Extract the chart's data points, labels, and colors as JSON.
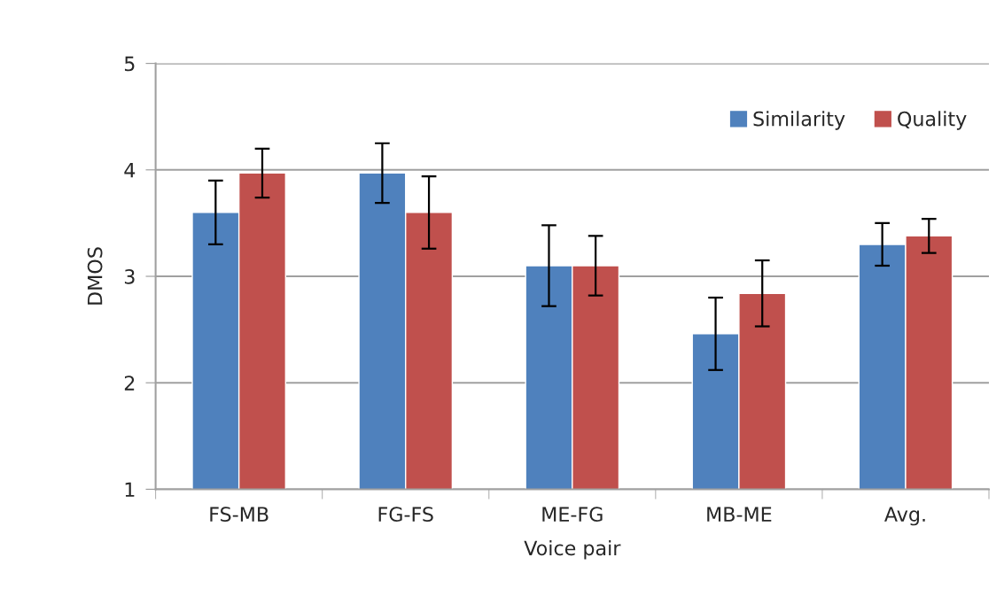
{
  "chart_data": {
    "type": "bar",
    "xlabel": "Voice pair",
    "ylabel": "DMOS",
    "categories": [
      "FS-MB",
      "FG-FS",
      "ME-FG",
      "MB-ME",
      "Avg."
    ],
    "series": [
      {
        "name": "Similarity",
        "color": "#4f81bd",
        "values": [
          3.6,
          3.97,
          3.1,
          2.46,
          3.3
        ],
        "errors": [
          0.3,
          0.28,
          0.38,
          0.34,
          0.2
        ]
      },
      {
        "name": "Quality",
        "color": "#c0504d",
        "values": [
          3.97,
          3.6,
          3.1,
          2.84,
          3.38
        ],
        "errors": [
          0.23,
          0.34,
          0.28,
          0.31,
          0.16
        ]
      }
    ],
    "ylim": [
      1,
      5
    ],
    "yticks": [
      1,
      2,
      3,
      4,
      5
    ],
    "grid": "y",
    "legend": "top right"
  }
}
